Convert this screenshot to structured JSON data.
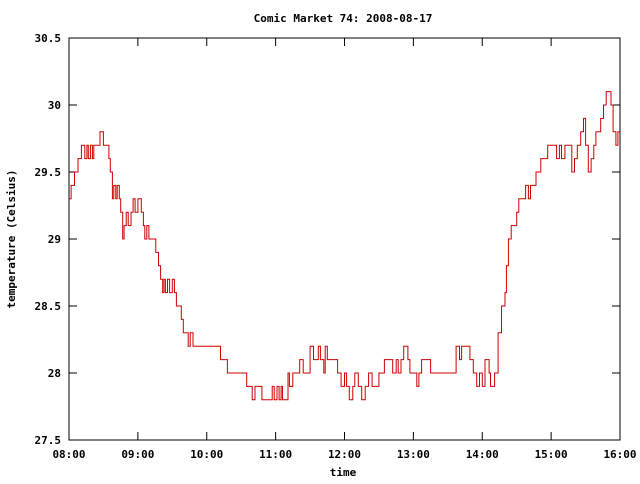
{
  "chart_data": {
    "type": "line",
    "title": "Comic Market 74: 2008-08-17",
    "xlabel": "time",
    "ylabel": "temperature (Celsius)",
    "x_unit": "hour of day",
    "xlim": [
      8,
      16
    ],
    "ylim": [
      27.5,
      30.5
    ],
    "x_tick_labels": [
      "08:00",
      "09:00",
      "10:00",
      "11:00",
      "12:00",
      "13:00",
      "14:00",
      "15:00",
      "16:00"
    ],
    "y_tick_labels": [
      "27.5",
      "28",
      "28.5",
      "29",
      "29.5",
      "30",
      "30.5"
    ],
    "grid": false,
    "legend": "none",
    "series": [
      {
        "color": "#cc0000",
        "step": true,
        "points": [
          [
            8.0,
            29.3
          ],
          [
            8.03,
            29.4
          ],
          [
            8.08,
            29.5
          ],
          [
            8.13,
            29.6
          ],
          [
            8.18,
            29.7
          ],
          [
            8.23,
            29.6
          ],
          [
            8.26,
            29.7
          ],
          [
            8.28,
            29.6
          ],
          [
            8.31,
            29.7
          ],
          [
            8.34,
            29.6
          ],
          [
            8.36,
            29.7
          ],
          [
            8.4,
            29.7
          ],
          [
            8.45,
            29.8
          ],
          [
            8.5,
            29.7
          ],
          [
            8.55,
            29.7
          ],
          [
            8.58,
            29.6
          ],
          [
            8.6,
            29.5
          ],
          [
            8.63,
            29.3
          ],
          [
            8.65,
            29.4
          ],
          [
            8.68,
            29.3
          ],
          [
            8.7,
            29.4
          ],
          [
            8.73,
            29.3
          ],
          [
            8.75,
            29.2
          ],
          [
            8.78,
            29.0
          ],
          [
            8.8,
            29.1
          ],
          [
            8.83,
            29.2
          ],
          [
            8.86,
            29.1
          ],
          [
            8.9,
            29.2
          ],
          [
            8.93,
            29.3
          ],
          [
            8.96,
            29.2
          ],
          [
            9.0,
            29.3
          ],
          [
            9.05,
            29.2
          ],
          [
            9.08,
            29.1
          ],
          [
            9.1,
            29.0
          ],
          [
            9.13,
            29.1
          ],
          [
            9.16,
            29.0
          ],
          [
            9.22,
            29.0
          ],
          [
            9.26,
            28.9
          ],
          [
            9.3,
            28.8
          ],
          [
            9.33,
            28.7
          ],
          [
            9.36,
            28.6
          ],
          [
            9.38,
            28.7
          ],
          [
            9.4,
            28.6
          ],
          [
            9.43,
            28.7
          ],
          [
            9.46,
            28.6
          ],
          [
            9.5,
            28.7
          ],
          [
            9.53,
            28.6
          ],
          [
            9.56,
            28.5
          ],
          [
            9.6,
            28.5
          ],
          [
            9.63,
            28.4
          ],
          [
            9.66,
            28.3
          ],
          [
            9.7,
            28.3
          ],
          [
            9.73,
            28.2
          ],
          [
            9.76,
            28.3
          ],
          [
            9.8,
            28.2
          ],
          [
            9.85,
            28.2
          ],
          [
            10.1,
            28.2
          ],
          [
            10.2,
            28.1
          ],
          [
            10.3,
            28.0
          ],
          [
            10.35,
            28.0
          ],
          [
            10.5,
            28.0
          ],
          [
            10.58,
            27.9
          ],
          [
            10.66,
            27.8
          ],
          [
            10.7,
            27.9
          ],
          [
            10.75,
            27.9
          ],
          [
            10.8,
            27.8
          ],
          [
            10.9,
            27.8
          ],
          [
            10.95,
            27.9
          ],
          [
            10.98,
            27.8
          ],
          [
            11.02,
            27.9
          ],
          [
            11.05,
            27.8
          ],
          [
            11.08,
            27.9
          ],
          [
            11.1,
            27.8
          ],
          [
            11.15,
            27.8
          ],
          [
            11.18,
            28.0
          ],
          [
            11.2,
            27.9
          ],
          [
            11.25,
            28.0
          ],
          [
            11.3,
            28.0
          ],
          [
            11.35,
            28.1
          ],
          [
            11.4,
            28.0
          ],
          [
            11.45,
            28.0
          ],
          [
            11.5,
            28.2
          ],
          [
            11.55,
            28.1
          ],
          [
            11.6,
            28.1
          ],
          [
            11.62,
            28.2
          ],
          [
            11.65,
            28.1
          ],
          [
            11.7,
            28.0
          ],
          [
            11.72,
            28.2
          ],
          [
            11.75,
            28.1
          ],
          [
            11.85,
            28.1
          ],
          [
            11.9,
            28.0
          ],
          [
            11.95,
            27.9
          ],
          [
            12.0,
            28.0
          ],
          [
            12.03,
            27.9
          ],
          [
            12.07,
            27.8
          ],
          [
            12.12,
            27.9
          ],
          [
            12.15,
            28.0
          ],
          [
            12.2,
            27.9
          ],
          [
            12.25,
            27.8
          ],
          [
            12.3,
            27.9
          ],
          [
            12.35,
            28.0
          ],
          [
            12.4,
            27.9
          ],
          [
            12.5,
            28.0
          ],
          [
            12.58,
            28.1
          ],
          [
            12.7,
            28.0
          ],
          [
            12.75,
            28.1
          ],
          [
            12.78,
            28.0
          ],
          [
            12.82,
            28.1
          ],
          [
            12.86,
            28.2
          ],
          [
            12.92,
            28.1
          ],
          [
            12.95,
            28.0
          ],
          [
            13.0,
            28.0
          ],
          [
            13.05,
            27.9
          ],
          [
            13.08,
            28.0
          ],
          [
            13.12,
            28.1
          ],
          [
            13.25,
            28.0
          ],
          [
            13.6,
            28.0
          ],
          [
            13.62,
            28.2
          ],
          [
            13.67,
            28.1
          ],
          [
            13.7,
            28.2
          ],
          [
            13.82,
            28.1
          ],
          [
            13.87,
            28.0
          ],
          [
            13.92,
            27.9
          ],
          [
            13.96,
            28.0
          ],
          [
            14.0,
            27.9
          ],
          [
            14.04,
            28.1
          ],
          [
            14.1,
            28.0
          ],
          [
            14.12,
            27.9
          ],
          [
            14.18,
            28.0
          ],
          [
            14.23,
            28.3
          ],
          [
            14.28,
            28.5
          ],
          [
            14.33,
            28.6
          ],
          [
            14.35,
            28.8
          ],
          [
            14.38,
            29.0
          ],
          [
            14.42,
            29.1
          ],
          [
            14.47,
            29.1
          ],
          [
            14.5,
            29.2
          ],
          [
            14.53,
            29.3
          ],
          [
            14.6,
            29.3
          ],
          [
            14.63,
            29.4
          ],
          [
            14.67,
            29.3
          ],
          [
            14.7,
            29.4
          ],
          [
            14.73,
            29.4
          ],
          [
            14.78,
            29.5
          ],
          [
            14.85,
            29.6
          ],
          [
            14.9,
            29.6
          ],
          [
            14.95,
            29.7
          ],
          [
            15.02,
            29.7
          ],
          [
            15.08,
            29.6
          ],
          [
            15.12,
            29.7
          ],
          [
            15.15,
            29.6
          ],
          [
            15.2,
            29.7
          ],
          [
            15.25,
            29.7
          ],
          [
            15.3,
            29.5
          ],
          [
            15.34,
            29.6
          ],
          [
            15.38,
            29.7
          ],
          [
            15.43,
            29.8
          ],
          [
            15.47,
            29.9
          ],
          [
            15.5,
            29.7
          ],
          [
            15.54,
            29.5
          ],
          [
            15.58,
            29.6
          ],
          [
            15.62,
            29.7
          ],
          [
            15.65,
            29.8
          ],
          [
            15.72,
            29.9
          ],
          [
            15.76,
            30.0
          ],
          [
            15.8,
            30.1
          ],
          [
            15.87,
            30.0
          ],
          [
            15.9,
            29.8
          ],
          [
            15.94,
            29.7
          ],
          [
            15.97,
            29.8
          ],
          [
            16.0,
            29.8
          ]
        ]
      }
    ]
  }
}
